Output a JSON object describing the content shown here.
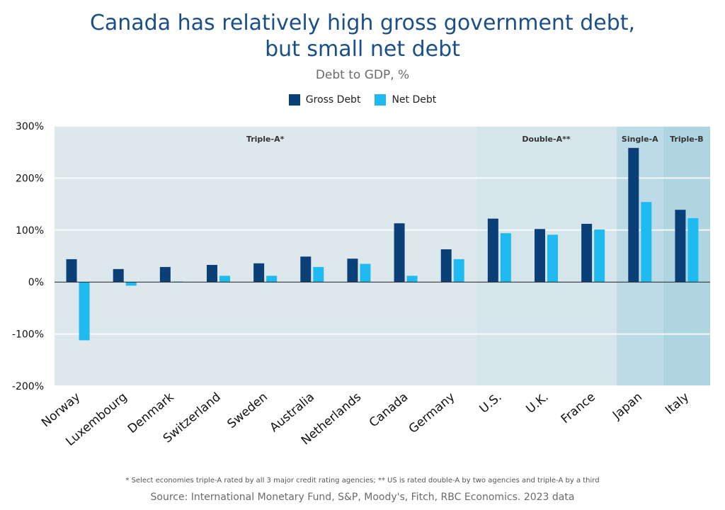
{
  "colors": {
    "gross": "#0b3f78",
    "net": "#1fbbf0",
    "band_triple_a": "#dde8ed",
    "band_double_a": "#d6e5ec",
    "band_single_a": "#bcdbe6",
    "band_triple_b": "#b0d5e2",
    "title": "#1b4f87"
  },
  "chart_data": {
    "type": "bar",
    "title": "Canada has relatively high gross government debt, but small net debt",
    "subtitle": "Debt to GDP, %",
    "categories": [
      "Norway",
      "Luxembourg",
      "Denmark",
      "Switzerland",
      "Sweden",
      "Australia",
      "Netherlands",
      "Canada",
      "Germany",
      "U.S.",
      "U.K.",
      "France",
      "Japan",
      "Italy"
    ],
    "series": [
      {
        "name": "Gross Debt",
        "values": [
          44,
          25,
          29,
          33,
          36,
          49,
          45,
          113,
          63,
          122,
          102,
          112,
          258,
          139
        ]
      },
      {
        "name": "Net Debt",
        "values": [
          -112,
          -7,
          1,
          12,
          12,
          29,
          35,
          12,
          44,
          94,
          91,
          101,
          154,
          123
        ]
      }
    ],
    "ylim": [
      -200,
      300
    ],
    "yticks": [
      300,
      200,
      100,
      0,
      -100,
      -200
    ],
    "ytick_labels": [
      "300%",
      "200%",
      "100%",
      "0%",
      "-100%",
      "-200%"
    ],
    "legend_position": "top-center",
    "grid": true,
    "rating_bands": [
      {
        "label": "Triple-A*",
        "start": 0,
        "end": 8
      },
      {
        "label": "Double-A**",
        "start": 9,
        "end": 11
      },
      {
        "label": "Single-A",
        "start": 12,
        "end": 12
      },
      {
        "label": "Triple-B",
        "start": 13,
        "end": 13
      }
    ]
  },
  "footnote": "* Select economies triple-A rated by all 3 major credit rating agencies; ** US is rated double-A by two agencies and triple-A by a third",
  "source": "Source: International Monetary Fund, S&P, Moody's, Fitch, RBC Economics. 2023 data"
}
